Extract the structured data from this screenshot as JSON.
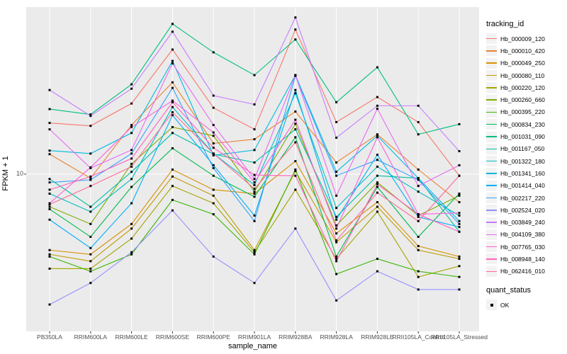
{
  "chart_data": {
    "type": "line",
    "title": "",
    "xlabel": "sample_name",
    "ylabel": "FPKM + 1",
    "x_scale": "categorical",
    "y_scale": "log10",
    "ylim": [
      1.35,
      84
    ],
    "grid": "gray panel, white gridlines (vertical per category, horizontal at 10)",
    "legend_position": "right",
    "panel_bg": "#EBEBEB",
    "grid_color": "#FFFFFF",
    "point_shape": "filled-square",
    "point_color": "#000000",
    "tick_text_color": "#4D4D4D",
    "y_ticks": [
      {
        "value": 10,
        "label": "10"
      }
    ],
    "categories": [
      "PB350LA",
      "RRIM600LA",
      "RRIM600LE",
      "RRIM600SE",
      "RRIM600PE",
      "RRIM901LA",
      "RRIM928BA",
      "RRIM928LA",
      "RRIM928LE",
      "RRII105LA_Control",
      "RRII105LA_Stressed"
    ],
    "series": [
      {
        "name": "Hb_000009_120",
        "color": "#F8766D",
        "values": [
          19.2,
          18.5,
          24.6,
          48.9,
          23.3,
          17.7,
          63.1,
          19.4,
          26.7,
          19.4,
          9.8
        ]
      },
      {
        "name": "Hb_000010_420",
        "color": "#EA8331",
        "values": [
          12.9,
          9.5,
          18.7,
          32.2,
          14.8,
          15.6,
          22.2,
          11.6,
          16.6,
          10.6,
          7.0
        ]
      },
      {
        "name": "Hb_000049_250",
        "color": "#D89000",
        "values": [
          3.8,
          3.6,
          5.3,
          10.6,
          8.2,
          7.8,
          11.8,
          4.7,
          7.0,
          4.0,
          3.5
        ]
      },
      {
        "name": "Hb_000080_110",
        "color": "#C09B00",
        "values": [
          3.6,
          3.3,
          5.0,
          9.7,
          7.6,
          3.8,
          10.4,
          4.2,
          6.6,
          3.8,
          3.4
        ]
      },
      {
        "name": "Hb_000220_120",
        "color": "#A3A500",
        "values": [
          3.0,
          3.0,
          4.4,
          8.6,
          6.9,
          3.7,
          8.2,
          3.4,
          6.2,
          2.7,
          3.1
        ]
      },
      {
        "name": "Hb_000260_660",
        "color": "#7CAE00",
        "values": [
          6.6,
          5.3,
          11.4,
          18.2,
          16.3,
          8.0,
          19.0,
          5.2,
          9.0,
          5.9,
          7.6
        ]
      },
      {
        "name": "Hb_000395_220",
        "color": "#39B600",
        "values": [
          3.5,
          2.9,
          3.6,
          7.2,
          6.0,
          3.6,
          10.6,
          2.8,
          3.4,
          2.9,
          2.7
        ]
      },
      {
        "name": "Hb_000834_230",
        "color": "#00BB4E",
        "values": [
          6.4,
          4.5,
          8.5,
          13.9,
          9.8,
          7.5,
          16.0,
          3.5,
          8.5,
          4.5,
          7.8
        ]
      },
      {
        "name": "Hb_001031_090",
        "color": "#00BF7D",
        "values": [
          22.9,
          21.4,
          31.4,
          67.8,
          47.2,
          35.3,
          55.6,
          25.0,
          39.0,
          16.6,
          18.9
        ]
      },
      {
        "name": "Hb_001167_050",
        "color": "#00C1A3",
        "values": [
          9.4,
          6.6,
          10.3,
          16.9,
          12.9,
          11.6,
          17.7,
          5.8,
          9.8,
          9.5,
          4.8
        ]
      },
      {
        "name": "Hb_001322_180",
        "color": "#00BFC4",
        "values": [
          7.8,
          6.2,
          9.4,
          23.5,
          13.0,
          8.7,
          28.0,
          6.5,
          11.0,
          8.0,
          5.9
        ]
      },
      {
        "name": "Hb_001341_160",
        "color": "#00BAE0",
        "values": [
          13.5,
          13.0,
          16.9,
          42.3,
          12.7,
          13.6,
          35.3,
          10.3,
          16.3,
          9.5,
          5.5
        ]
      },
      {
        "name": "Hb_001414_040",
        "color": "#00B0F6",
        "values": [
          5.6,
          3.9,
          6.9,
          21.2,
          11.2,
          5.9,
          29.2,
          5.6,
          12.8,
          5.8,
          5.1
        ]
      },
      {
        "name": "Hb_002217_220",
        "color": "#35A2FF",
        "values": [
          9.0,
          9.3,
          13.0,
          30.0,
          10.8,
          5.5,
          35.0,
          9.8,
          12.0,
          9.3,
          5.3
        ]
      },
      {
        "name": "Hb_002524_020",
        "color": "#9590FF",
        "values": [
          1.9,
          2.5,
          3.7,
          6.3,
          3.5,
          2.5,
          5.0,
          2.0,
          2.9,
          2.3,
          2.3
        ]
      },
      {
        "name": "Hb_003849_240",
        "color": "#C77CFF",
        "values": [
          29.2,
          21.0,
          29.7,
          61.4,
          27.2,
          24.3,
          73.6,
          15.9,
          23.9,
          23.9,
          13.4
        ]
      },
      {
        "name": "Hb_004109_380",
        "color": "#E76BF3",
        "values": [
          17.7,
          10.8,
          13.6,
          41.0,
          18.7,
          9.4,
          35.3,
          7.6,
          23.0,
          8.6,
          11.2
        ]
      },
      {
        "name": "Hb_007765_030",
        "color": "#FA62DB",
        "values": [
          6.9,
          10.9,
          18.2,
          25.5,
          17.0,
          9.0,
          20.0,
          5.0,
          16.0,
          6.0,
          6.1
        ]
      },
      {
        "name": "Hb_008948_140",
        "color": "#FF62BC",
        "values": [
          8.2,
          9.7,
          12.2,
          25.0,
          14.0,
          9.9,
          9.8,
          3.3,
          8.8,
          6.0,
          4.8
        ]
      },
      {
        "name": "Hb_062416_010",
        "color": "#FF6A98",
        "values": [
          6.8,
          8.6,
          11.0,
          22.0,
          13.0,
          8.3,
          15.0,
          4.3,
          7.9,
          5.5,
          9.8
        ]
      }
    ]
  },
  "legend": {
    "color_title": "tracking_id",
    "shape_title": "quant_status",
    "shape_items": [
      {
        "label": "OK",
        "marker": "black-square"
      }
    ]
  }
}
